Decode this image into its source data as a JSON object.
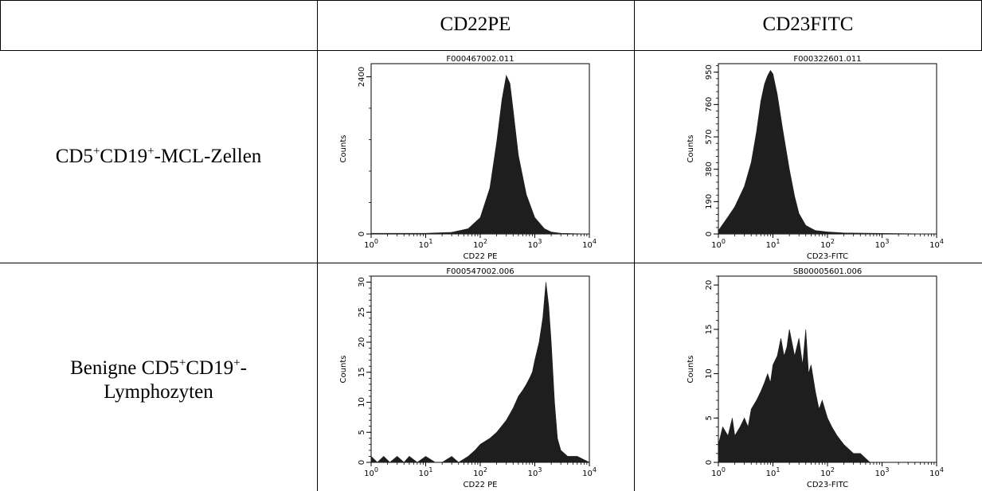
{
  "table": {
    "headers": [
      "",
      "CD22PE",
      "CD23FITC"
    ],
    "rows": [
      {
        "label": [
          "CD5",
          "+",
          "CD19",
          "+",
          "-MCL-Zellen"
        ],
        "label_lines": 1
      },
      {
        "label": [
          "Benigne CD5",
          "+",
          "CD19",
          "+",
          "-",
          "Lymphozyten"
        ],
        "label_lines": 2
      }
    ]
  },
  "chart_data": [
    {
      "type": "area",
      "title": "F000467002.011",
      "xlabel": "CD22 PE",
      "ylabel": "Counts",
      "x_scale": "log",
      "xlim": [
        1,
        10000
      ],
      "ylim": [
        0,
        2600
      ],
      "x_ticks": [
        1,
        10,
        100,
        1000,
        10000
      ],
      "x_tick_labels": [
        "10^0",
        "10^1",
        "10^2",
        "10^3",
        "10^4"
      ],
      "y_ticks": [
        0,
        2400
      ],
      "y_tick_labels": [
        "0",
        "2400"
      ],
      "fill_color": "#1e1e1e",
      "x": [
        1,
        10,
        30,
        60,
        100,
        150,
        200,
        250,
        300,
        350,
        400,
        500,
        700,
        1000,
        1500,
        2000,
        3000,
        10000
      ],
      "y": [
        10,
        10,
        25,
        80,
        250,
        700,
        1400,
        2050,
        2420,
        2300,
        1900,
        1200,
        600,
        250,
        80,
        30,
        10,
        0
      ]
    },
    {
      "type": "area",
      "title": "F000322601.011",
      "xlabel": "CD23-FITC",
      "ylabel": "Counts",
      "x_scale": "log",
      "xlim": [
        1,
        10000
      ],
      "ylim": [
        0,
        1000
      ],
      "x_ticks": [
        1,
        10,
        100,
        1000,
        10000
      ],
      "x_tick_labels": [
        "10^0",
        "10^1",
        "10^2",
        "10^3",
        "10^4"
      ],
      "y_ticks": [
        0,
        190,
        380,
        570,
        760,
        950
      ],
      "y_tick_labels": [
        "0",
        "190",
        "380",
        "570",
        "760",
        "950"
      ],
      "fill_color": "#1e1e1e",
      "x": [
        1,
        1.5,
        2,
        3,
        4,
        5,
        6,
        7,
        8,
        9,
        10,
        12,
        15,
        20,
        25,
        30,
        40,
        60,
        100,
        200,
        1000,
        10000
      ],
      "y": [
        20,
        100,
        160,
        280,
        420,
        600,
        780,
        880,
        930,
        960,
        940,
        820,
        620,
        380,
        220,
        120,
        50,
        20,
        12,
        6,
        3,
        0
      ]
    },
    {
      "type": "area",
      "title": "F000547002.006",
      "xlabel": "CD22 PE",
      "ylabel": "Counts",
      "x_scale": "log",
      "xlim": [
        1,
        10000
      ],
      "ylim": [
        0,
        31
      ],
      "x_ticks": [
        1,
        10,
        100,
        1000,
        10000
      ],
      "x_tick_labels": [
        "10^0",
        "10^1",
        "10^2",
        "10^3",
        "10^4"
      ],
      "y_ticks": [
        0,
        5,
        10,
        15,
        20,
        25,
        30
      ],
      "y_tick_labels": [
        "0",
        "5",
        "10",
        "15",
        "20",
        "25",
        "30"
      ],
      "fill_color": "#1e1e1e",
      "x": [
        1,
        1.3,
        1.7,
        2.2,
        3,
        4,
        5,
        7,
        10,
        15,
        20,
        30,
        40,
        60,
        80,
        100,
        150,
        200,
        300,
        400,
        500,
        600,
        700,
        800,
        900,
        1000,
        1200,
        1400,
        1600,
        1800,
        2000,
        2300,
        2600,
        3000,
        4000,
        6000,
        10000
      ],
      "y": [
        1,
        0,
        1,
        0,
        1,
        0,
        1,
        0,
        1,
        0,
        0,
        1,
        0,
        1,
        2,
        3,
        4,
        5,
        7,
        9,
        11,
        12,
        13,
        14,
        15,
        17,
        20,
        24,
        30,
        26,
        20,
        10,
        4,
        2,
        1,
        1,
        0
      ]
    },
    {
      "type": "area",
      "title": "SB00005601.006",
      "xlabel": "CD23-FITC",
      "ylabel": "Counts",
      "x_scale": "log",
      "xlim": [
        1,
        10000
      ],
      "ylim": [
        0,
        21
      ],
      "x_ticks": [
        1,
        10,
        100,
        1000,
        10000
      ],
      "x_tick_labels": [
        "10^0",
        "10^1",
        "10^2",
        "10^3",
        "10^4"
      ],
      "y_ticks": [
        0,
        5,
        10,
        15,
        20
      ],
      "y_tick_labels": [
        "0",
        "5",
        "10",
        "15",
        "20"
      ],
      "fill_color": "#1e1e1e",
      "x": [
        1,
        1.2,
        1.5,
        1.8,
        2,
        2.5,
        3,
        3.5,
        4,
        5,
        6,
        7,
        8,
        9,
        10,
        12,
        14,
        16,
        18,
        20,
        25,
        30,
        35,
        40,
        45,
        50,
        60,
        70,
        80,
        100,
        120,
        150,
        200,
        300,
        400,
        600,
        1000,
        10000
      ],
      "y": [
        2,
        4,
        3,
        5,
        3,
        4,
        5,
        4,
        6,
        7,
        8,
        9,
        10,
        9,
        11,
        12,
        14,
        12,
        13,
        15,
        12,
        14,
        11,
        15,
        10,
        11,
        8,
        6,
        7,
        5,
        4,
        3,
        2,
        1,
        1,
        0,
        0,
        0
      ]
    }
  ]
}
